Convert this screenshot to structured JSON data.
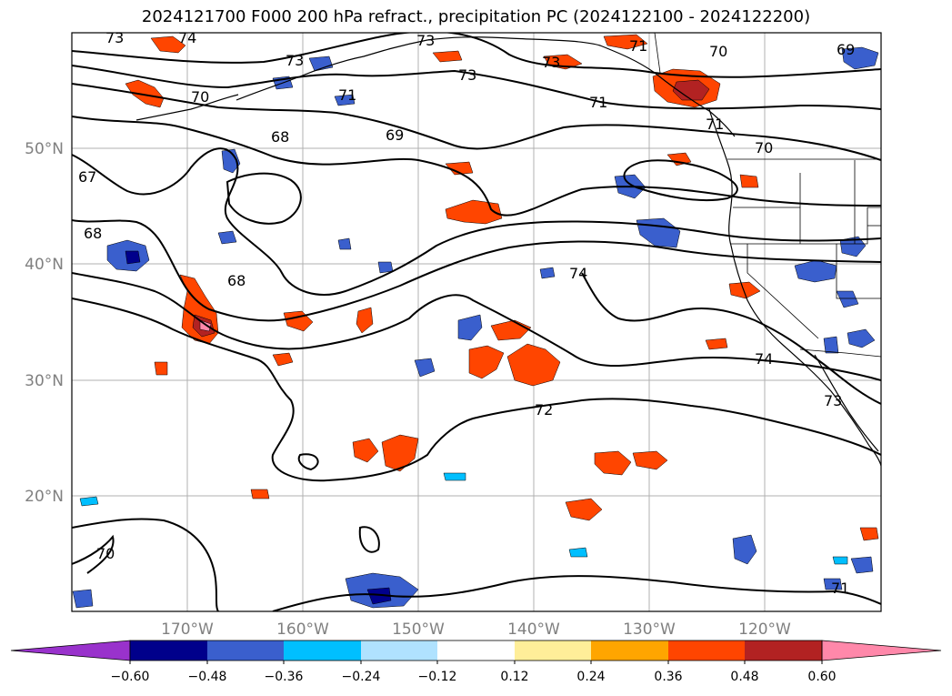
{
  "title": "2024121700 F000 200 hPa refract., precipitation PC (2024122100 - 2024122200)",
  "lat_labels": [
    "50°N",
    "40°N",
    "30°N",
    "20°N"
  ],
  "lon_labels": [
    "170°W",
    "160°W",
    "150°W",
    "140°W",
    "130°W",
    "120°W"
  ],
  "contour_labels": [
    "73",
    "74",
    "73",
    "73",
    "73",
    "73",
    "71",
    "70",
    "69",
    "70",
    "71",
    "71",
    "71",
    "70",
    "68",
    "69",
    "67",
    "68",
    "68",
    "74",
    "74",
    "72",
    "73",
    "70",
    "71"
  ],
  "colorbar": {
    "ticks": [
      "−0.60",
      "−0.48",
      "−0.36",
      "−0.24",
      "−0.12",
      "0.12",
      "0.24",
      "0.36",
      "0.48",
      "0.60"
    ],
    "colors": [
      "#9932cc",
      "#00008b",
      "#3a5fcd",
      "#00bfff",
      "#b0e2ff",
      "#ffffff",
      "#ffee99",
      "#ffa500",
      "#ff4500",
      "#b22222",
      "#ff88aa"
    ]
  },
  "colors": {
    "coast": "#000000",
    "grid": "#b0b0b0",
    "contour": "#000000"
  }
}
